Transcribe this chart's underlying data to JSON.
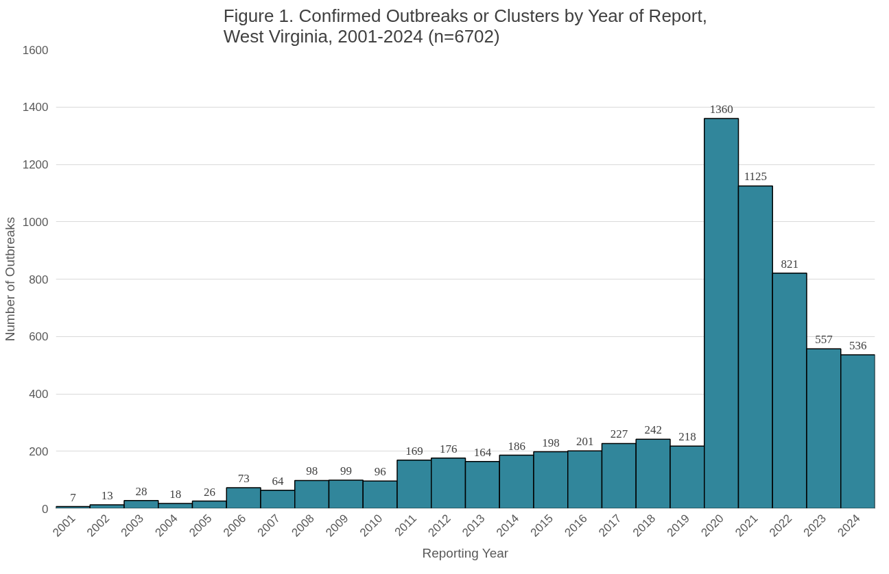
{
  "chart_data": {
    "type": "bar",
    "title": "Figure 1. Confirmed Outbreaks or Clusters by Year of Report,\nWest Virginia, 2001-2024 (n=6702)",
    "xlabel": "Reporting Year",
    "ylabel": "Number of Outbreaks",
    "categories": [
      "2001",
      "2002",
      "2003",
      "2004",
      "2005",
      "2006",
      "2007",
      "2008",
      "2009",
      "2010",
      "2011",
      "2012",
      "2013",
      "2014",
      "2015",
      "2016",
      "2017",
      "2018",
      "2019",
      "2020",
      "2021",
      "2022",
      "2023",
      "2024"
    ],
    "values": [
      7,
      13,
      28,
      18,
      26,
      73,
      64,
      98,
      99,
      96,
      169,
      176,
      164,
      186,
      198,
      201,
      227,
      242,
      218,
      1360,
      1125,
      821,
      557,
      536
    ],
    "color": "#31869b",
    "ylim": [
      0,
      1600
    ],
    "yticks": [
      0,
      200,
      400,
      600,
      800,
      1000,
      1200,
      1400,
      1600
    ],
    "grid": "y",
    "data_labels": true
  }
}
